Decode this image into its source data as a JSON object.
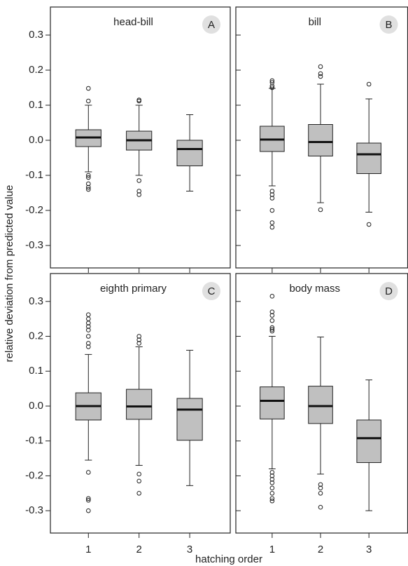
{
  "xlabel": "hatching order",
  "ylabel": "relative deviation from predicted value",
  "chart_data": [
    {
      "type": "box",
      "title": "head-bill",
      "panel_label": "A",
      "color": "#c0c0c0",
      "ylim": [
        -0.364,
        0.38
      ],
      "xlim": [
        0.25,
        3.8
      ],
      "yticks": [
        -0.3,
        -0.2,
        -0.1,
        {
          "value": 0,
          "label": "0.0"
        },
        0.1,
        0.2,
        0.3
      ],
      "boxes": [
        {
          "whisker_low": -0.09,
          "q1": -0.018,
          "median": 0.008,
          "q3": 0.03,
          "whisker_high": 0.1,
          "outliers": [
            0.148,
            0.112,
            -0.1,
            -0.106,
            -0.124,
            -0.134,
            -0.14
          ]
        },
        {
          "whisker_low": -0.1,
          "q1": -0.028,
          "median": 0.0,
          "q3": 0.026,
          "whisker_high": 0.1,
          "outliers": [
            0.115,
            0.112,
            -0.115,
            -0.145,
            -0.155
          ]
        },
        {
          "whisker_low": -0.145,
          "q1": -0.073,
          "median": -0.025,
          "q3": 0.0,
          "whisker_high": 0.073,
          "outliers": []
        }
      ]
    },
    {
      "type": "box",
      "title": "bill",
      "panel_label": "B",
      "color": "#c0c0c0",
      "ylim": [
        -0.364,
        0.38
      ],
      "xlim": [
        0.25,
        3.8
      ],
      "yticks": [
        -0.3,
        -0.2,
        -0.1,
        {
          "value": 0,
          "label": "0.0"
        },
        0.1,
        0.2,
        0.3
      ],
      "boxes": [
        {
          "whisker_low": -0.13,
          "q1": -0.032,
          "median": 0.002,
          "q3": 0.04,
          "whisker_high": 0.148,
          "outliers": [
            0.17,
            0.165,
            0.155,
            0.15,
            -0.145,
            -0.155,
            -0.165,
            -0.2,
            -0.235,
            -0.248
          ]
        },
        {
          "whisker_low": -0.178,
          "q1": -0.045,
          "median": -0.005,
          "q3": 0.045,
          "whisker_high": 0.16,
          "outliers": [
            0.21,
            0.19,
            0.182,
            -0.198
          ]
        },
        {
          "whisker_low": -0.205,
          "q1": -0.095,
          "median": -0.04,
          "q3": -0.008,
          "whisker_high": 0.118,
          "outliers": [
            0.16,
            -0.24
          ]
        }
      ]
    },
    {
      "type": "box",
      "title": "eighth primary",
      "panel_label": "C",
      "color": "#c0c0c0",
      "ylim": [
        -0.364,
        0.38
      ],
      "xlim": [
        0.25,
        3.8
      ],
      "yticks": [
        -0.3,
        -0.2,
        -0.1,
        {
          "value": 0,
          "label": "0.0"
        },
        0.1,
        0.2,
        0.3
      ],
      "categories": [
        "1",
        "2",
        "3"
      ],
      "boxes": [
        {
          "whisker_low": -0.155,
          "q1": -0.04,
          "median": 0.0,
          "q3": 0.038,
          "whisker_high": 0.148,
          "outliers": [
            0.262,
            0.25,
            0.238,
            0.228,
            0.218,
            0.2,
            0.18,
            0.17,
            -0.19,
            -0.265,
            -0.27,
            -0.3
          ]
        },
        {
          "whisker_low": -0.17,
          "q1": -0.038,
          "median": -0.001,
          "q3": 0.048,
          "whisker_high": 0.17,
          "outliers": [
            0.2,
            0.19,
            0.18,
            -0.195,
            -0.215,
            -0.25
          ]
        },
        {
          "whisker_low": -0.228,
          "q1": -0.098,
          "median": -0.01,
          "q3": 0.022,
          "whisker_high": 0.16,
          "outliers": []
        }
      ]
    },
    {
      "type": "box",
      "title": "body mass",
      "panel_label": "D",
      "color": "#c0c0c0",
      "ylim": [
        -0.364,
        0.38
      ],
      "xlim": [
        0.25,
        3.8
      ],
      "yticks": [
        -0.3,
        -0.2,
        -0.1,
        {
          "value": 0,
          "label": "0.0"
        },
        0.1,
        0.2,
        0.3
      ],
      "categories": [
        "1",
        "2",
        "3"
      ],
      "boxes": [
        {
          "whisker_low": -0.18,
          "q1": -0.037,
          "median": 0.015,
          "q3": 0.055,
          "whisker_high": 0.2,
          "outliers": [
            0.315,
            0.27,
            0.26,
            0.245,
            0.225,
            0.22,
            0.215,
            -0.19,
            -0.2,
            -0.21,
            -0.22,
            -0.235,
            -0.25,
            -0.265,
            -0.272
          ]
        },
        {
          "whisker_low": -0.195,
          "q1": -0.05,
          "median": 0.0,
          "q3": 0.057,
          "whisker_high": 0.198,
          "outliers": [
            -0.225,
            -0.235,
            -0.25,
            -0.29
          ]
        },
        {
          "whisker_low": -0.3,
          "q1": -0.162,
          "median": -0.092,
          "q3": -0.04,
          "whisker_high": 0.075,
          "outliers": []
        }
      ]
    }
  ]
}
